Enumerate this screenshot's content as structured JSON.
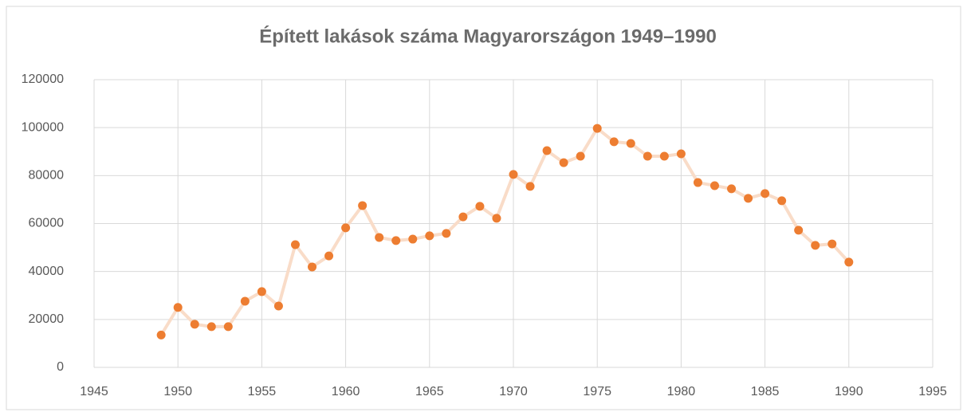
{
  "chart_data": {
    "type": "line",
    "title": "Épített lakások száma Magyarországon 1949–1990",
    "x": [
      1949,
      1950,
      1951,
      1952,
      1953,
      1954,
      1955,
      1956,
      1957,
      1958,
      1959,
      1960,
      1961,
      1962,
      1963,
      1964,
      1965,
      1966,
      1967,
      1968,
      1969,
      1970,
      1971,
      1972,
      1973,
      1974,
      1975,
      1976,
      1977,
      1978,
      1979,
      1980,
      1981,
      1982,
      1983,
      1984,
      1985,
      1986,
      1987,
      1988,
      1989,
      1990
    ],
    "series": [
      {
        "color": "#ed7d31",
        "line_color": "#f9dcc8",
        "values": [
          13500,
          25000,
          18000,
          17000,
          17000,
          27600,
          31600,
          25600,
          51200,
          41900,
          46500,
          58200,
          67500,
          54200,
          52900,
          53500,
          54900,
          55900,
          62800,
          67200,
          62200,
          80500,
          75500,
          90400,
          85400,
          88100,
          99700,
          94100,
          93400,
          88100,
          88100,
          89100,
          77100,
          75800,
          74500,
          70500,
          72500,
          69500,
          57200,
          50900,
          51500,
          43900
        ]
      }
    ],
    "xlim": [
      1945,
      1995
    ],
    "xticks": [
      1945,
      1950,
      1955,
      1960,
      1965,
      1970,
      1975,
      1980,
      1985,
      1990,
      1995
    ],
    "ylim": [
      0,
      120000
    ],
    "yticks": [
      0,
      20000,
      40000,
      60000,
      80000,
      100000,
      120000
    ],
    "grid": true
  }
}
